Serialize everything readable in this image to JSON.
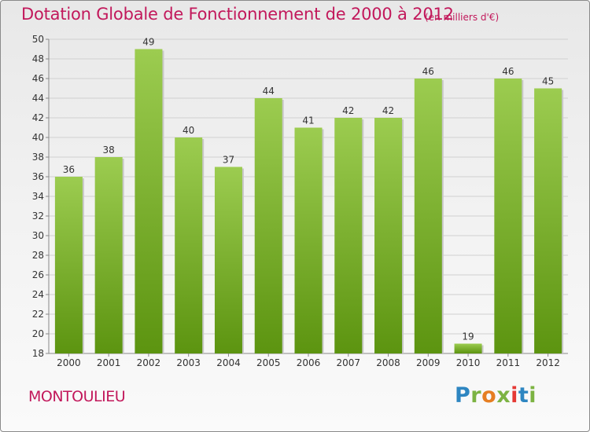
{
  "header": {
    "title": "Dotation Globale de Fonctionnement de 2000 à 2012",
    "subtitle": "(en milliers d'€)"
  },
  "footer": {
    "city": "MONTOULIEU",
    "logo": "Proxiti"
  },
  "colors": {
    "title": "#c2185b",
    "bar_top": "#9ccc50",
    "bar_bottom": "#5c9410",
    "logo_blue": "#2e86c1",
    "logo_green": "#7cb342",
    "logo_orange": "#e67e22",
    "logo_red": "#e53935"
  },
  "chart_data": {
    "type": "bar",
    "title": "Dotation Globale de Fonctionnement de 2000 à 2012",
    "subtitle": "(en milliers d'€)",
    "xlabel": "",
    "ylabel": "",
    "categories": [
      "2000",
      "2001",
      "2002",
      "2003",
      "2004",
      "2005",
      "2006",
      "2007",
      "2008",
      "2009",
      "2010",
      "2011",
      "2012"
    ],
    "values": [
      36,
      38,
      49,
      40,
      37,
      44,
      41,
      42,
      42,
      46,
      19,
      46,
      45
    ],
    "ylim": [
      18,
      50
    ],
    "yticks": [
      18,
      20,
      22,
      24,
      26,
      28,
      30,
      32,
      34,
      36,
      38,
      40,
      42,
      44,
      46,
      48,
      50
    ],
    "grid": true,
    "data_labels": true,
    "legend": "none"
  }
}
